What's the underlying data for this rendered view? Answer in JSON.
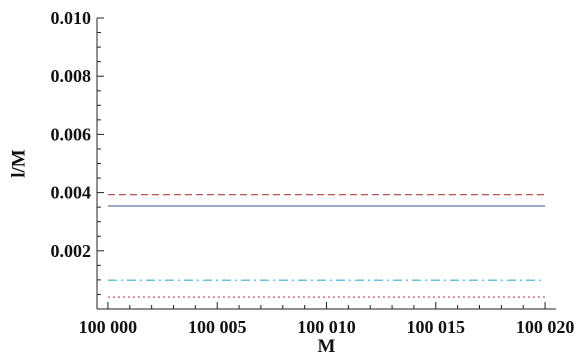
{
  "chart_data": {
    "type": "line",
    "title": "",
    "xlabel": "M",
    "ylabel": "l/M",
    "xlim": [
      99999.5,
      100020.5
    ],
    "ylim": [
      0,
      0.01
    ],
    "x_ticks": [
      {
        "value": 100000,
        "label": "100 000"
      },
      {
        "value": 100005,
        "label": "100 005"
      },
      {
        "value": 100010,
        "label": "100 010"
      },
      {
        "value": 100015,
        "label": "100 015"
      },
      {
        "value": 100020,
        "label": "100 020"
      }
    ],
    "y_ticks": [
      {
        "value": 0.002,
        "label": "0.002"
      },
      {
        "value": 0.004,
        "label": "0.004"
      },
      {
        "value": 0.006,
        "label": "0.006"
      },
      {
        "value": 0.008,
        "label": "0.008"
      },
      {
        "value": 0.01,
        "label": "0.010"
      }
    ],
    "grid": false,
    "legend": "none",
    "series": [
      {
        "x": [
          100000,
          100020
        ],
        "values": [
          0.00393,
          0.00393
        ],
        "color": "#b04040",
        "style": "dashed"
      },
      {
        "x": [
          100000,
          100020
        ],
        "values": [
          0.00354,
          0.00354
        ],
        "color": "#3a4f9a",
        "style": "solid"
      },
      {
        "x": [
          100000,
          100020
        ],
        "values": [
          0.00099,
          0.00099
        ],
        "color": "#3aaed0",
        "style": "dash-dot"
      },
      {
        "x": [
          100000,
          100020
        ],
        "values": [
          0.00041,
          0.00041
        ],
        "color": "#c03a78",
        "style": "dotted"
      }
    ]
  }
}
